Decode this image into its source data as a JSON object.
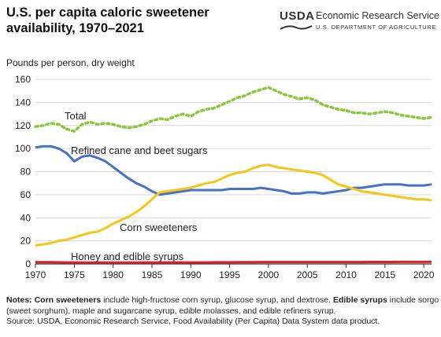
{
  "header": {
    "title": "U.S. per capita caloric sweetener availability, 1970–2021"
  },
  "logo": {
    "abbr": "USDA",
    "agency": "Economic Research Service",
    "department": "U.S. DEPARTMENT OF AGRICULTURE"
  },
  "notes": {
    "prefix": "Notes: ",
    "term1": "Corn sweeteners",
    "text1": " include high-fructose corn syrup, glucose syrup, and dextrose. ",
    "term2": "Edible syrups",
    "text2": " include sorgo (sweet sorghum), maple and sugarcane syrup, edible molasses, and edible refiners syrup.",
    "source": "Source: USDA, Economic Research Service, Food Availability (Per Capita) Data System data product."
  },
  "colors": {
    "total": "#8cc63f",
    "refined": "#4472c4",
    "corn": "#f5c518",
    "honey": "#e02020",
    "grid": "#d9d9d9",
    "axis": "#333333"
  },
  "chart_data": {
    "type": "line",
    "ylabel": "Pounds per person, dry weight",
    "xlim": [
      1970,
      2021
    ],
    "ylim": [
      0,
      160
    ],
    "xticks": [
      1970,
      1975,
      1980,
      1985,
      1990,
      1995,
      2000,
      2005,
      2010,
      2015,
      2020
    ],
    "yticks": [
      0,
      20,
      40,
      60,
      80,
      100,
      120,
      140,
      160
    ],
    "grid": "horizontal",
    "legend": "inline labels",
    "x": [
      1970,
      1971,
      1972,
      1973,
      1974,
      1975,
      1976,
      1977,
      1978,
      1979,
      1980,
      1981,
      1982,
      1983,
      1984,
      1985,
      1986,
      1987,
      1988,
      1989,
      1990,
      1991,
      1992,
      1993,
      1994,
      1995,
      1996,
      1997,
      1998,
      1999,
      2000,
      2001,
      2002,
      2003,
      2004,
      2005,
      2006,
      2007,
      2008,
      2009,
      2010,
      2011,
      2012,
      2013,
      2014,
      2015,
      2016,
      2017,
      2018,
      2019,
      2020,
      2021
    ],
    "series": [
      {
        "name": "Total",
        "style": "dotted",
        "color_key": "total",
        "values": [
          119,
          120,
          122,
          121,
          117,
          115,
          121,
          123,
          121,
          122,
          121,
          119,
          118,
          119,
          121,
          124,
          126,
          125,
          128,
          130,
          128,
          132,
          134,
          135,
          138,
          141,
          144,
          146,
          149,
          151,
          153,
          150,
          147,
          145,
          143,
          144,
          142,
          138,
          136,
          134,
          133,
          131,
          131,
          130,
          131,
          132,
          131,
          129,
          128,
          127,
          126,
          127
        ]
      },
      {
        "name": "Refined cane and beet sugars",
        "style": "solid",
        "color_key": "refined",
        "values": [
          101,
          102,
          102,
          100,
          96,
          89,
          93,
          94,
          92,
          89,
          84,
          79,
          74,
          70,
          67,
          63,
          60,
          61,
          62,
          63,
          64,
          64,
          64,
          64,
          64,
          65,
          65,
          65,
          65,
          66,
          65,
          64,
          63,
          61,
          61,
          62,
          62,
          61,
          62,
          63,
          64,
          66,
          66,
          67,
          68,
          69,
          69,
          69,
          68,
          68,
          68,
          69
        ]
      },
      {
        "name": "Corn sweeteners",
        "style": "solid",
        "color_key": "corn",
        "values": [
          16,
          17,
          18,
          20,
          21,
          23,
          25,
          27,
          28,
          31,
          35,
          38,
          41,
          45,
          50,
          56,
          62,
          63,
          64,
          65,
          66,
          68,
          70,
          71,
          74,
          77,
          79,
          80,
          83,
          85,
          86,
          84,
          83,
          82,
          81,
          80,
          79,
          77,
          73,
          69,
          67,
          65,
          63,
          62,
          61,
          60,
          59,
          58,
          57,
          56,
          56,
          55
        ]
      },
      {
        "name": "Honey and edible syrups",
        "style": "solid",
        "color_key": "honey",
        "values": [
          1.5,
          1.5,
          1.5,
          1.4,
          1.3,
          1.3,
          1.2,
          1.2,
          1.2,
          1.2,
          1.2,
          1.2,
          1.2,
          1.2,
          1.3,
          1.3,
          1.3,
          1.3,
          1.3,
          1.3,
          1.3,
          1.3,
          1.3,
          1.4,
          1.4,
          1.4,
          1.5,
          1.5,
          1.5,
          1.6,
          1.6,
          1.6,
          1.6,
          1.6,
          1.6,
          1.6,
          1.6,
          1.6,
          1.6,
          1.6,
          1.6,
          1.6,
          1.6,
          1.7,
          1.7,
          1.7,
          1.7,
          1.8,
          1.8,
          1.8,
          1.8,
          1.9
        ]
      }
    ]
  }
}
